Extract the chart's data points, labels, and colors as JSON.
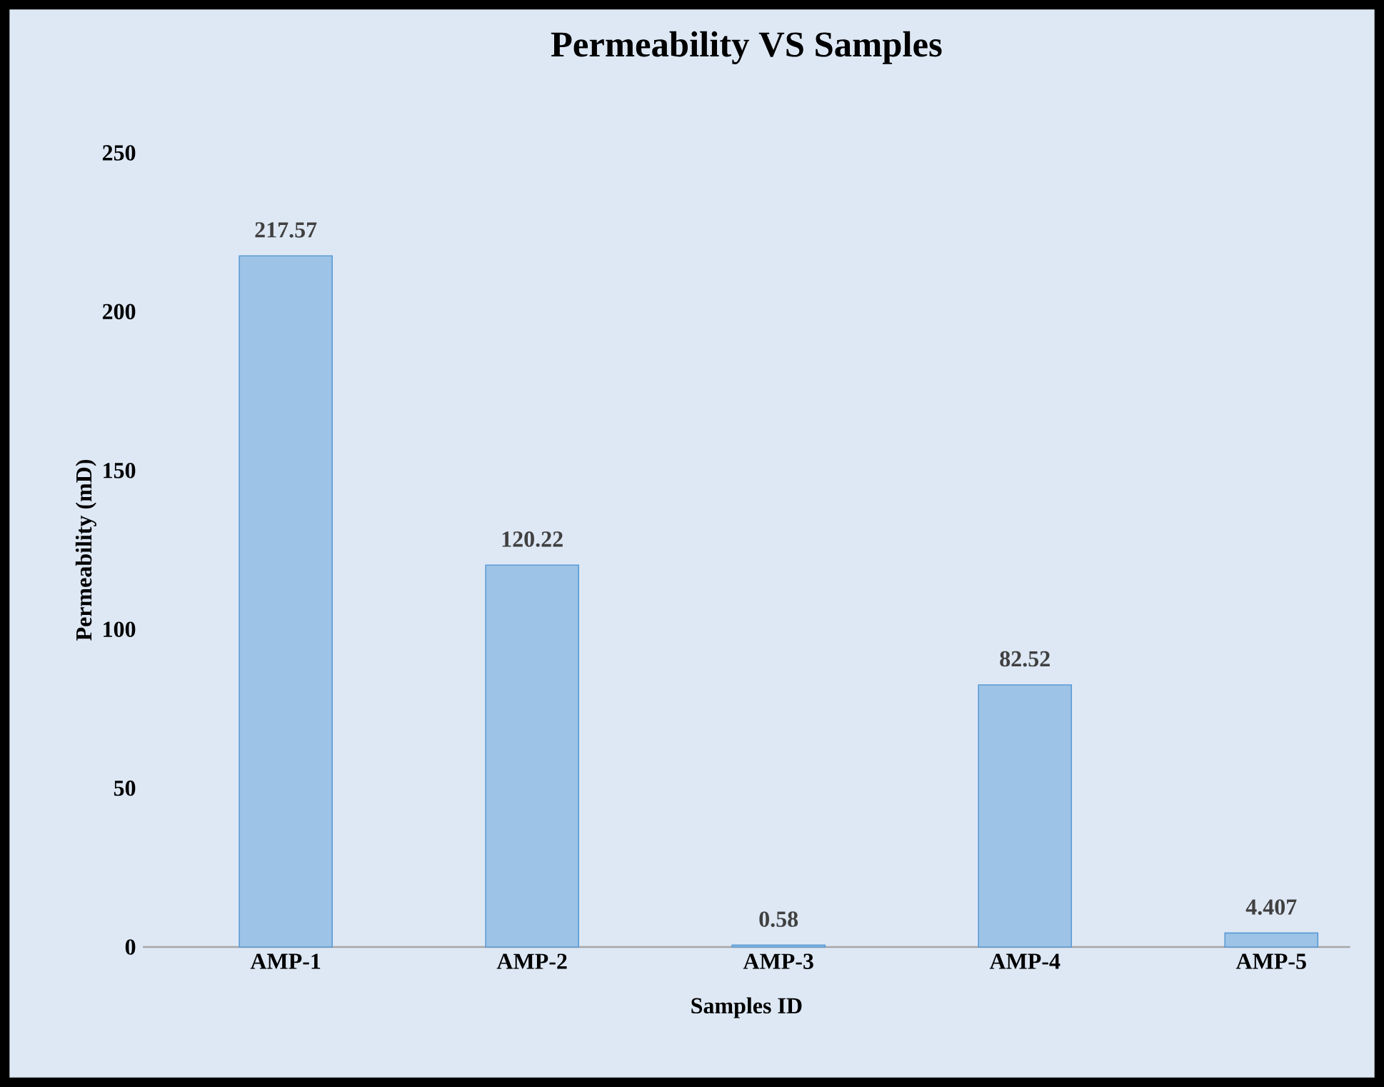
{
  "chart_data": {
    "type": "bar",
    "title": "Permeability VS Samples",
    "xlabel": "Samples ID",
    "ylabel": "Permeability (mD)",
    "categories": [
      "AMP-1",
      "AMP-2",
      "AMP-3",
      "AMP-4",
      "AMP-5"
    ],
    "values": [
      217.57,
      120.22,
      0.58,
      82.52,
      4.407
    ],
    "color": "#9dc3e6",
    "ylim": [
      0,
      250
    ],
    "yticks": [
      0,
      50,
      100,
      150,
      200,
      250
    ],
    "data_labels": true
  }
}
